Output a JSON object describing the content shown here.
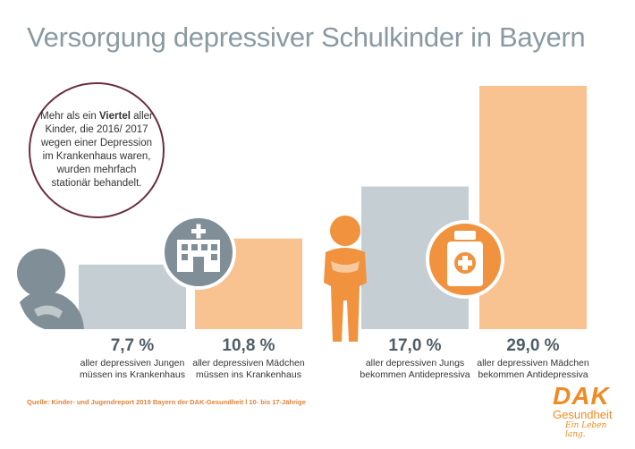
{
  "title": "Versorgung depressiver Schulkinder in Bayern",
  "callout": {
    "pre": "Mehr als ein ",
    "bold": "Viertel",
    "post": " aller Kinder, die 2016/ 2017 wegen einer Depression im Krankenhaus waren, wurden mehrfach stationär behandelt."
  },
  "chart_data": {
    "type": "bar",
    "categories": [
      "aller depressiven Jungen müssen ins Krankenhaus",
      "aller depressiven Mädchen müssen ins Krankenhaus",
      "aller depressiven Jungs bekommen Antidepressiva",
      "aller depressiven Mädchen bekommen Antidepressiva"
    ],
    "values": [
      7.7,
      10.8,
      17.0,
      29.0
    ],
    "value_labels": [
      "7,7 %",
      "10,8 %",
      "17,0 %",
      "29,0 %"
    ],
    "desc_lines": [
      [
        "aller depressiven Jungen",
        "müssen ins Krankenhaus"
      ],
      [
        "aller depressiven Mädchen",
        "müssen ins Krankenhaus"
      ],
      [
        "aller depressiven Jungs",
        "bekommen Antidepressiva"
      ],
      [
        "aller depressiven Mädchen",
        "bekommen Antidepressiva"
      ]
    ],
    "colors": [
      "#c5ced3",
      "#f8c291",
      "#c5ced3",
      "#f8c291"
    ],
    "ylim": [
      0,
      30
    ],
    "grid": false
  },
  "colors": {
    "gray_bar": "#c5ced3",
    "orange_bar": "#f8c291",
    "icon_gray": "#7f8e97",
    "icon_orange": "#f0923e",
    "callout_border": "#6b2d45",
    "brand": "#f08a24"
  },
  "icons": [
    "sad-child-icon",
    "hospital-icon",
    "sad-boy-icon",
    "medicine-bottle-icon"
  ],
  "source": "Quelle: Kinder- und Jugendreport 2019 Bayern der DAK-Gesundheit l 10- bis 17-Jährige",
  "logo": {
    "name": "DAK",
    "sub": "Gesundheit",
    "tagline": "Ein Leben lang."
  }
}
